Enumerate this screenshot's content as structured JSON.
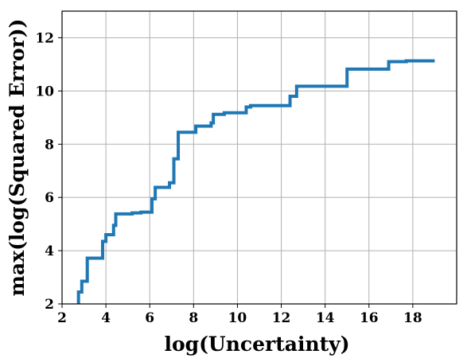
{
  "chart_data": {
    "type": "line",
    "title": "",
    "xlabel": "log(Uncertainty)",
    "ylabel": "max(log(Squared Error))",
    "xlim": [
      2.0,
      20.0
    ],
    "ylim": [
      2.0,
      13.0
    ],
    "x_ticks": [
      2,
      4,
      6,
      8,
      10,
      12,
      14,
      16,
      18
    ],
    "x_tick_labels": [
      "2",
      "4",
      "6",
      "8",
      "10",
      "12",
      "14",
      "16",
      "18"
    ],
    "y_ticks": [
      2,
      4,
      6,
      8,
      10,
      12
    ],
    "y_tick_labels": [
      "2",
      "4",
      "6",
      "8",
      "10",
      "12"
    ],
    "grid": true,
    "legend": "none",
    "series": [
      {
        "color": "#1f77b4",
        "step": true,
        "points": [
          [
            2.75,
            2.0
          ],
          [
            2.75,
            2.45
          ],
          [
            2.9,
            2.45
          ],
          [
            2.9,
            2.85
          ],
          [
            3.15,
            2.85
          ],
          [
            3.15,
            3.72
          ],
          [
            3.85,
            3.72
          ],
          [
            3.85,
            4.35
          ],
          [
            4.0,
            4.35
          ],
          [
            4.0,
            4.6
          ],
          [
            4.35,
            4.6
          ],
          [
            4.35,
            4.95
          ],
          [
            4.45,
            4.95
          ],
          [
            4.45,
            5.38
          ],
          [
            5.2,
            5.38
          ],
          [
            5.2,
            5.42
          ],
          [
            5.6,
            5.42
          ],
          [
            5.6,
            5.45
          ],
          [
            6.1,
            5.45
          ],
          [
            6.1,
            5.95
          ],
          [
            6.25,
            5.95
          ],
          [
            6.25,
            6.38
          ],
          [
            6.9,
            6.38
          ],
          [
            6.9,
            6.55
          ],
          [
            7.1,
            6.55
          ],
          [
            7.1,
            7.45
          ],
          [
            7.3,
            7.45
          ],
          [
            7.3,
            8.45
          ],
          [
            8.1,
            8.45
          ],
          [
            8.1,
            8.68
          ],
          [
            8.8,
            8.68
          ],
          [
            8.8,
            8.8
          ],
          [
            8.9,
            8.8
          ],
          [
            8.9,
            9.12
          ],
          [
            9.4,
            9.12
          ],
          [
            9.4,
            9.18
          ],
          [
            10.4,
            9.18
          ],
          [
            10.4,
            9.4
          ],
          [
            10.6,
            9.4
          ],
          [
            10.6,
            9.45
          ],
          [
            12.4,
            9.45
          ],
          [
            12.4,
            9.8
          ],
          [
            12.7,
            9.8
          ],
          [
            12.7,
            10.18
          ],
          [
            15.0,
            10.18
          ],
          [
            15.0,
            10.82
          ],
          [
            16.9,
            10.82
          ],
          [
            16.9,
            11.1
          ],
          [
            17.7,
            11.1
          ],
          [
            17.7,
            11.13
          ],
          [
            19.0,
            11.13
          ]
        ]
      }
    ]
  }
}
